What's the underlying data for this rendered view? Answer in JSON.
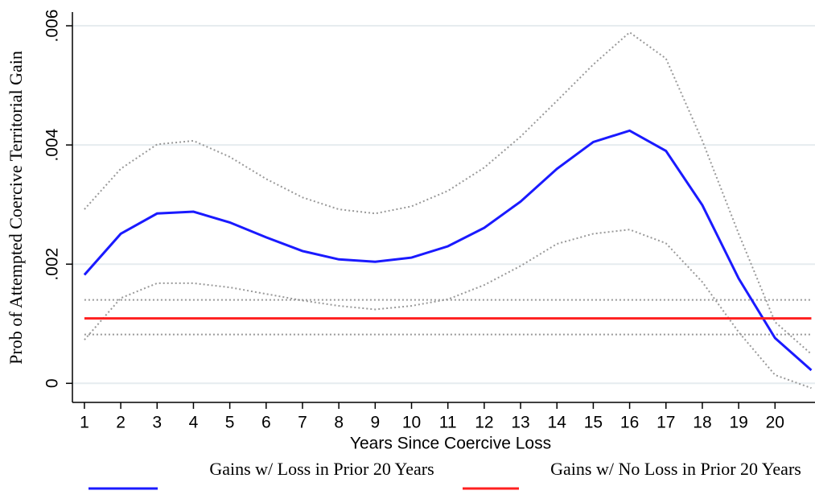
{
  "chart_data": {
    "type": "line",
    "xlabel": "Years Since Coercive Loss",
    "ylabel": "Prob of Attempted Coercive Territorial Gain",
    "x": [
      1,
      2,
      3,
      4,
      5,
      6,
      7,
      8,
      9,
      10,
      11,
      12,
      13,
      14,
      15,
      16,
      17,
      18,
      19,
      20,
      21
    ],
    "xlim": [
      0.67,
      21.1
    ],
    "xticks": [
      1,
      2,
      3,
      4,
      5,
      6,
      7,
      8,
      9,
      10,
      11,
      12,
      13,
      14,
      15,
      16,
      17,
      18,
      19,
      20
    ],
    "ylim": [
      -0.00032,
      0.00623
    ],
    "yticks": [
      0,
      {
        "value": 0.002,
        "label": ".002"
      },
      {
        "value": 0.004,
        "label": ".004"
      },
      {
        "value": 0.006,
        "label": ".006"
      }
    ],
    "grid": true,
    "series": [
      {
        "name": "Gains w/ Loss in Prior 20 Years",
        "color": "#1a1aff",
        "values": [
          0.00182,
          0.00251,
          0.00285,
          0.00288,
          0.0027,
          0.00245,
          0.00222,
          0.00208,
          0.00204,
          0.00211,
          0.0023,
          0.00261,
          0.00305,
          0.0036,
          0.00405,
          0.00424,
          0.0039,
          0.00299,
          0.00176,
          0.00076,
          0.00022
        ],
        "upper": [
          0.00292,
          0.0036,
          0.00401,
          0.00407,
          0.0038,
          0.00343,
          0.00312,
          0.00292,
          0.00285,
          0.00297,
          0.00323,
          0.00362,
          0.00414,
          0.00474,
          0.00535,
          0.00589,
          0.00545,
          0.00407,
          0.00251,
          0.00103,
          0.00049
        ],
        "lower": [
          0.00073,
          0.00143,
          0.00168,
          0.00168,
          0.00161,
          0.0015,
          0.00139,
          0.0013,
          0.00124,
          0.0013,
          0.00141,
          0.00165,
          0.00197,
          0.00234,
          0.00251,
          0.00258,
          0.00235,
          0.0017,
          0.00086,
          0.00014,
          -8e-05
        ]
      },
      {
        "name": "Gains w/ No Loss in Prior 20 Years",
        "color": "#ff2020",
        "values": [
          0.00109,
          0.00109,
          0.00109,
          0.00109,
          0.00109,
          0.00109,
          0.00109,
          0.00109,
          0.00109,
          0.00109,
          0.00109,
          0.00109,
          0.00109,
          0.00109,
          0.00109,
          0.00109,
          0.00109,
          0.00109,
          0.00109,
          0.00109,
          0.00109
        ],
        "upper": [
          0.0014,
          0.0014,
          0.0014,
          0.0014,
          0.0014,
          0.0014,
          0.0014,
          0.0014,
          0.0014,
          0.0014,
          0.0014,
          0.0014,
          0.0014,
          0.0014,
          0.0014,
          0.0014,
          0.0014,
          0.0014,
          0.0014,
          0.0014,
          0.0014
        ],
        "lower": [
          0.00082,
          0.00082,
          0.00082,
          0.00082,
          0.00082,
          0.00082,
          0.00082,
          0.00082,
          0.00082,
          0.00082,
          0.00082,
          0.00082,
          0.00082,
          0.00082,
          0.00082,
          0.00082,
          0.00082,
          0.00082,
          0.00082,
          0.00082,
          0.00082
        ]
      }
    ]
  }
}
